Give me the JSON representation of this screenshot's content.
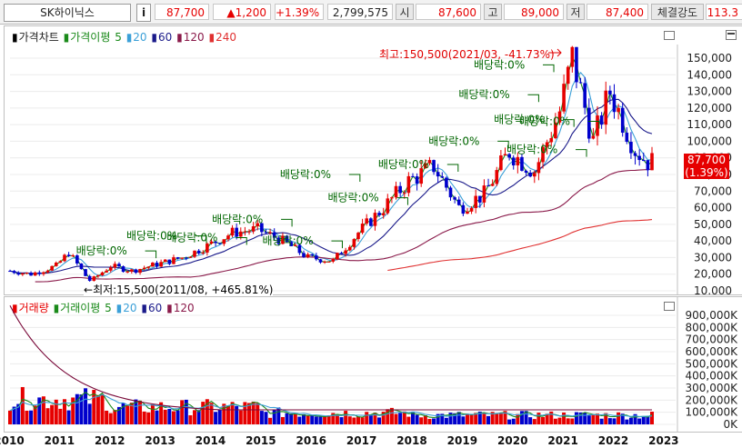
{
  "quote": {
    "stock": "SK하이닉스",
    "info_label": "i",
    "price": "87,700",
    "change": "▲1,200",
    "change_pct": "+1.39%",
    "volume": "2,799,575",
    "open_label": "시",
    "open": "87,600",
    "high_label": "고",
    "high": "89,000",
    "low_label": "저",
    "low": "87,400",
    "strength_label": "체결강도",
    "strength": "113.3"
  },
  "price_panel": {
    "legend": {
      "chart": "가격차트",
      "ma": "가격이평",
      "p5": "5",
      "p20": "20",
      "p60": "60",
      "p120": "120",
      "p240": "240"
    },
    "max_note": "최고:150,500(2021/03, -41.73%)",
    "min_note": "최저:15,500(2011/08, +465.81%)",
    "dividend_label": "배당락:0%",
    "current_price": "87,700",
    "current_pct": "(1.39%)",
    "y_ticks": [
      "150,000",
      "140,000",
      "130,000",
      "120,000",
      "110,000",
      "100,000",
      "90,000",
      "80,000",
      "70,000",
      "60,000",
      "50,000",
      "40,000",
      "30,000",
      "20,000",
      "10,000"
    ]
  },
  "volume_panel": {
    "legend": {
      "chart": "거래량",
      "ma": "거래이평",
      "p5": "5",
      "p20": "20",
      "p60": "60",
      "p120": "120"
    },
    "y_ticks": [
      "900,000K",
      "800,000K",
      "700,000K",
      "600,000K",
      "500,000K",
      "400,000K",
      "300,000K",
      "200,000K",
      "100,000K",
      "0K"
    ]
  },
  "x_axis": [
    "2010",
    "2011",
    "2012",
    "2013",
    "2014",
    "2015",
    "2016",
    "2017",
    "2018",
    "2019",
    "2020",
    "2021",
    "2022",
    "2023"
  ],
  "colors": {
    "up": "#e60000",
    "down": "#0000cc",
    "ma5": "#1a8a1a",
    "ma20": "#3ba0d8",
    "ma60": "#1a1a8a",
    "ma120": "#8a1a4a",
    "ma240": "#e03030",
    "volume_ma120": "#7a0a3a"
  },
  "chart_data": [
    {
      "type": "candlestick",
      "title": "가격차트",
      "x_range": [
        "2010",
        "2022"
      ],
      "ylim": [
        10000,
        150000
      ],
      "series_close_approx": [
        {
          "x": "2010-01",
          "y": 22000
        },
        {
          "x": "2010-06",
          "y": 20000
        },
        {
          "x": "2010-12",
          "y": 25000
        },
        {
          "x": "2011-03",
          "y": 33000
        },
        {
          "x": "2011-08",
          "y": 15500
        },
        {
          "x": "2012-01",
          "y": 25000
        },
        {
          "x": "2012-06",
          "y": 22000
        },
        {
          "x": "2012-12",
          "y": 26000
        },
        {
          "x": "2013-06",
          "y": 30000
        },
        {
          "x": "2013-12",
          "y": 37000
        },
        {
          "x": "2014-06",
          "y": 45000
        },
        {
          "x": "2014-12",
          "y": 47000
        },
        {
          "x": "2015-06",
          "y": 40000
        },
        {
          "x": "2015-12",
          "y": 30000
        },
        {
          "x": "2016-06",
          "y": 28000
        },
        {
          "x": "2016-12",
          "y": 45000
        },
        {
          "x": "2017-06",
          "y": 60000
        },
        {
          "x": "2017-12",
          "y": 76000
        },
        {
          "x": "2018-06",
          "y": 85000
        },
        {
          "x": "2018-12",
          "y": 60000
        },
        {
          "x": "2019-06",
          "y": 68000
        },
        {
          "x": "2019-12",
          "y": 94000
        },
        {
          "x": "2020-06",
          "y": 82000
        },
        {
          "x": "2020-12",
          "y": 118000
        },
        {
          "x": "2021-03",
          "y": 150500
        },
        {
          "x": "2021-08",
          "y": 100000
        },
        {
          "x": "2021-12",
          "y": 130000
        },
        {
          "x": "2022-06",
          "y": 95000
        },
        {
          "x": "2022-09",
          "y": 87700
        }
      ],
      "annotations": [
        "최고:150,500(2021/03, -41.73%)",
        "최저:15,500(2011/08, +465.81%)",
        "배당락:0%"
      ]
    },
    {
      "type": "bar",
      "title": "거래량",
      "ylim": [
        0,
        900000
      ],
      "unit": "K"
    }
  ]
}
